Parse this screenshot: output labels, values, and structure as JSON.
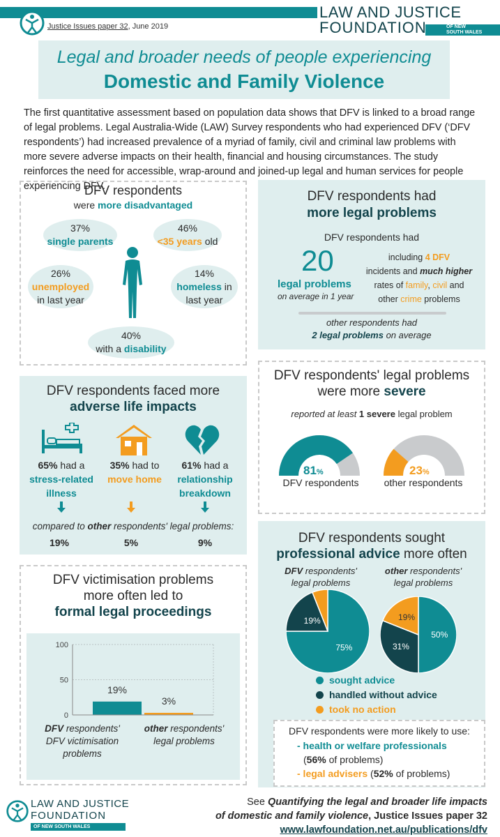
{
  "header": {
    "series": "Justice Issues paper 32",
    "date": ", June 2019",
    "logo_line1": "LAW AND JUSTICE",
    "logo_line2": "FOUNDATION",
    "logo_sub1": "OF NEW",
    "logo_sub2": "SOUTH WALES"
  },
  "title": {
    "line1": "Legal and broader needs of people experiencing",
    "line2": "Domestic and Family Violence"
  },
  "intro": "The first quantitative assessment based on population data shows that DFV is linked to a broad range of legal problems. Legal Australia-Wide (LAW) Survey respondents who had experienced DFV (‘DFV respondents’) had increased prevalence of a myriad of family, civil and criminal law problems with more severe adverse impacts on their health, financial and housing circumstances. The study reinforces the need for accessible, wrap-around and joined-up legal and human services for people experiencing DFV.",
  "disadvantaged": {
    "title1": "DFV respondents",
    "title2a": "were ",
    "title2b": "more disadvantaged",
    "single": {
      "pct": "37%",
      "label": "single parents"
    },
    "young": {
      "pct": "46%",
      "label": "<35 years",
      "suffix": " old"
    },
    "unemployed": {
      "pct": "26%",
      "label": "unemployed",
      "suffix": "in last year"
    },
    "homeless": {
      "pct": "14%",
      "label": "homeless",
      "suffix1": " in",
      "suffix2": "last year"
    },
    "disability": {
      "pct": "40%",
      "prefix": "with a ",
      "label": "disability"
    }
  },
  "more_problems": {
    "title1": "DFV respondents had",
    "title2": "more legal problems",
    "sub": "DFV respondents had",
    "number": "20",
    "number_label": "legal problems",
    "number_sub": "on average in 1 year",
    "detail": {
      "a": "including ",
      "b": "4 DFV",
      "c": "incidents",
      "d": " and ",
      "e": "much higher",
      "f": "rates of ",
      "g": "family",
      "h": ", ",
      "i": "civil",
      "j": " and",
      "k": "other ",
      "l": "crime",
      "m": " problems"
    },
    "other1": "other respondents had",
    "other2a": "2 legal problems",
    "other2b": " on average"
  },
  "impacts": {
    "title1": "DFV respondents faced more",
    "title2": "adverse life impacts",
    "items": [
      {
        "pct": "65%",
        "text1": " had a",
        "text2": "stress-related",
        "text3": "illness",
        "other": "19%"
      },
      {
        "pct": "35%",
        "text1": " had to",
        "text2": "move home",
        "text3": "",
        "other": "5%"
      },
      {
        "pct": "61%",
        "text1": " had a",
        "text2": "relationship",
        "text3": "breakdown",
        "other": "9%"
      }
    ],
    "compare_a": "compared to ",
    "compare_b": "other",
    "compare_c": " respondents' legal problems:"
  },
  "severe": {
    "title1": "DFV respondents' legal problems",
    "title2a": "were more ",
    "title2b": "severe",
    "sub_a": "reported at least ",
    "sub_b": "1 severe",
    "sub_c": " legal problem",
    "dfv_pct": "81",
    "dfv_label": "DFV respondents",
    "other_pct": "23",
    "other_label": "other respondents",
    "pct_sign": "%"
  },
  "proceedings": {
    "title1": "DFV victimisation problems",
    "title2": "more often led to",
    "title3": "formal legal proceedings"
  },
  "chart_data": {
    "type": "bar",
    "categories": [
      "DFV respondents' DFV victimisation problems",
      "other respondents' legal problems"
    ],
    "values": [
      19,
      3
    ],
    "value_labels": [
      "19%",
      "3%"
    ],
    "ylim": [
      0,
      100
    ],
    "yticks": [
      "100",
      "50",
      "0"
    ],
    "colors": [
      "#0f8c93",
      "#f39c1f"
    ],
    "cat1": {
      "a": "DFV",
      "b": " respondents'",
      "c": "DFV victimisation",
      "d": "problems"
    },
    "cat2": {
      "a": "other",
      "b": " respondents'",
      "c": "legal problems"
    }
  },
  "advice": {
    "title1": "DFV respondents sought",
    "title2a": "professional advice",
    "title2b": " more often",
    "pie1_title_a": "DFV",
    "pie1_title_b": " respondents'",
    "pie1_title_c": "legal problems",
    "pie2_title_a": "other",
    "pie2_title_b": " respondents'",
    "pie2_title_c": "legal problems",
    "pie1": [
      {
        "label": "75%",
        "value": 75,
        "color": "#0f8c93"
      },
      {
        "label": "19%",
        "value": 19,
        "color": "#13444c"
      },
      {
        "label": "6%",
        "value": 6,
        "color": "#f39c1f"
      }
    ],
    "pie2": [
      {
        "label": "50%",
        "value": 50,
        "color": "#0f8c93"
      },
      {
        "label": "31%",
        "value": 31,
        "color": "#13444c"
      },
      {
        "label": "19%",
        "value": 19,
        "color": "#f39c1f"
      }
    ],
    "legend": [
      {
        "label": "sought advice",
        "color": "#0f8c93"
      },
      {
        "label": "handled without advice",
        "color": "#13444c"
      },
      {
        "label": "took no action",
        "color": "#f39c1f"
      }
    ],
    "likely": "DFV respondents were more likely to use:",
    "item1": "- health or welfare professionals",
    "item1b_a": "(",
    "item1b_b": "56%",
    "item1b_c": " of problems)",
    "item2": "- legal advisers",
    "item2b_a": " (",
    "item2b_b": "52%",
    "item2b_c": " of problems)"
  },
  "footer": {
    "logo_line1": "LAW AND JUSTICE",
    "logo_line2": "FOUNDATION",
    "logo_sub": "OF NEW SOUTH WALES",
    "see": "See ",
    "pub1": "Quantifying the legal and broader life impacts",
    "pub2": "of domestic and family violence",
    "pub3": ", Justice Issues paper 32",
    "url": "www.lawfoundation.net.au/publications/dfv"
  }
}
